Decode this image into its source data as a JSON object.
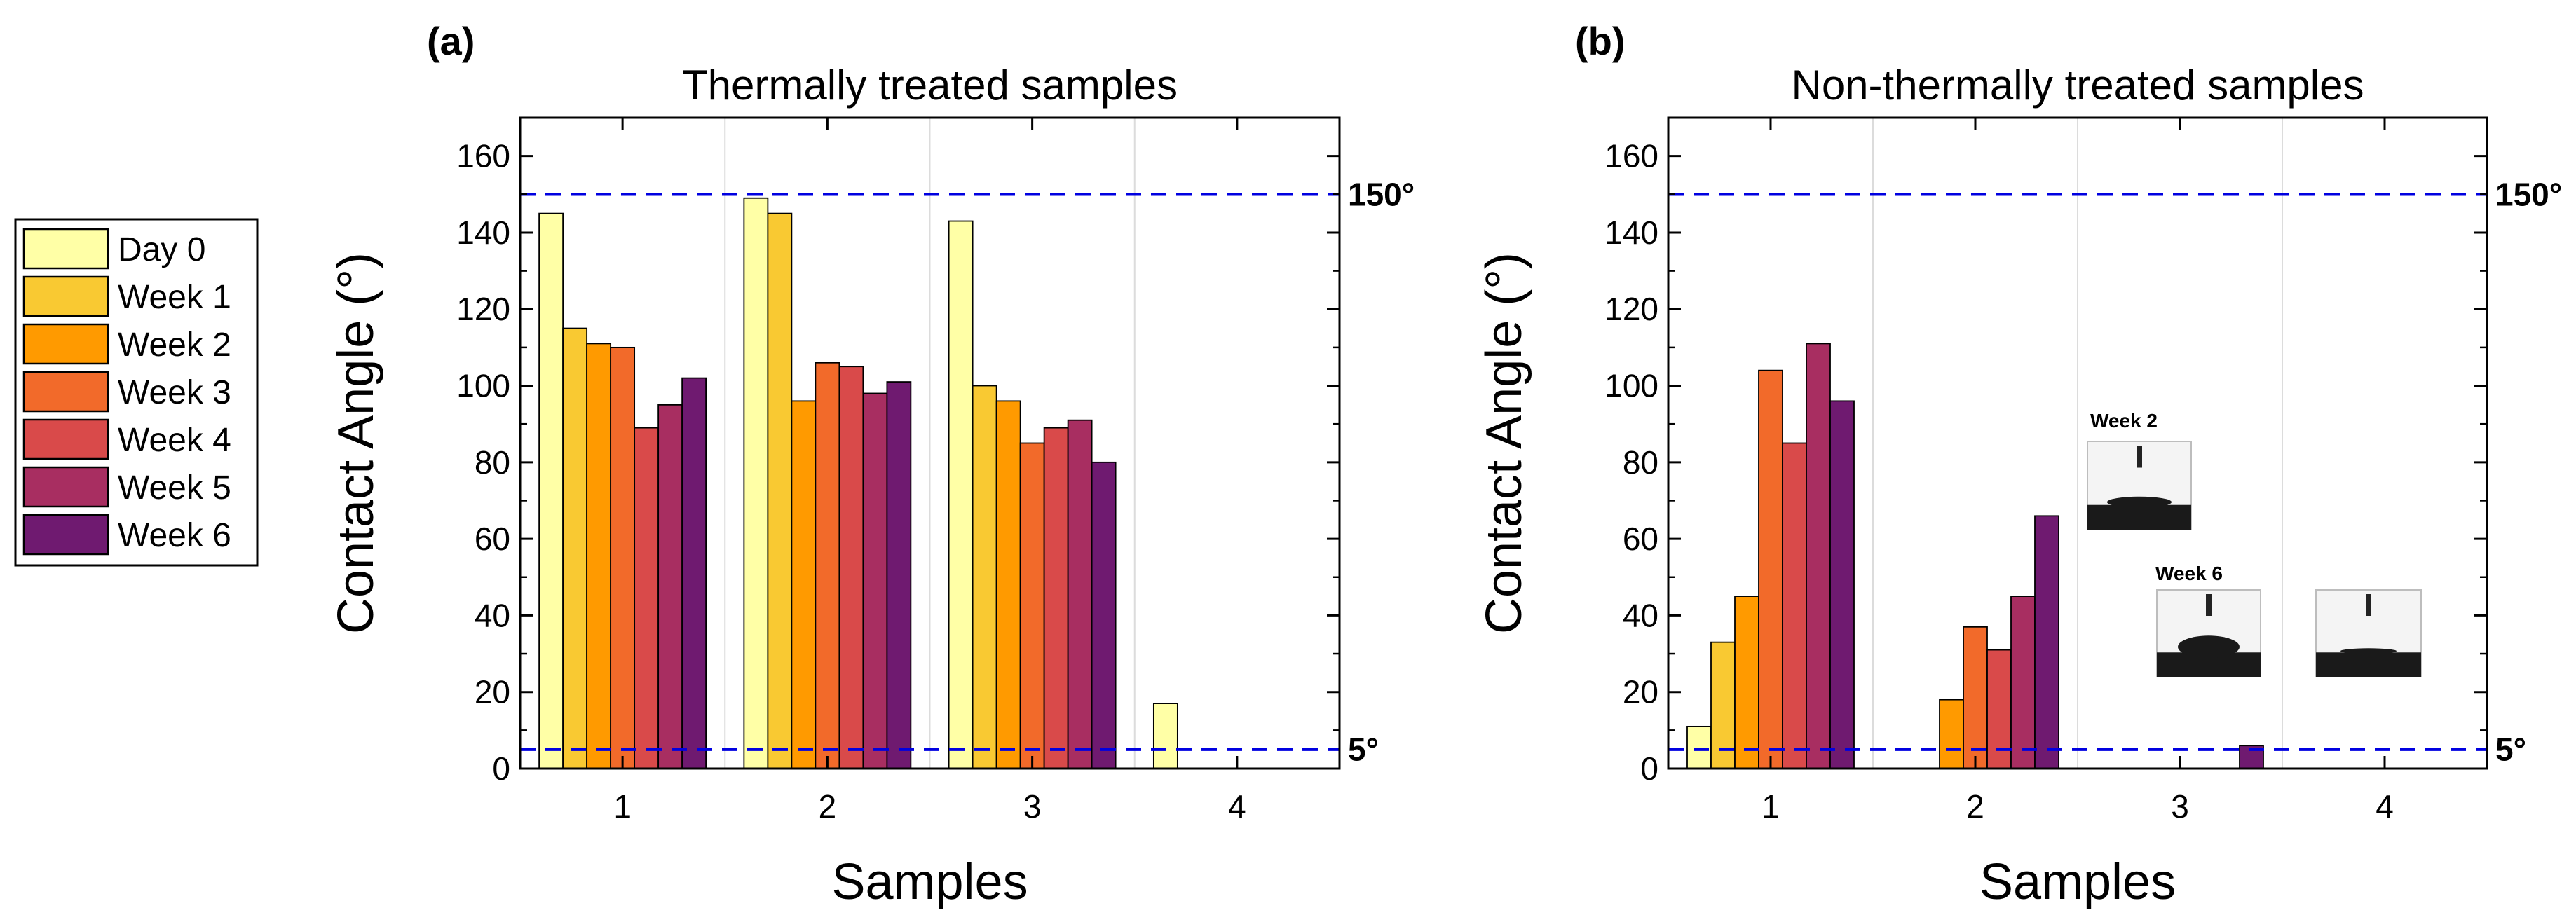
{
  "legend": {
    "entries": [
      {
        "label": "Day 0",
        "color": "#FFFFA6"
      },
      {
        "label": "Week 1",
        "color": "#F9C932"
      },
      {
        "label": "Week 2",
        "color": "#FF9A00"
      },
      {
        "label": "Week 3",
        "color": "#F26A2A"
      },
      {
        "label": "Week 4",
        "color": "#D94A4A"
      },
      {
        "label": "Week 5",
        "color": "#A82E61"
      },
      {
        "label": "Week 6",
        "color": "#6F1A70"
      }
    ]
  },
  "reference_lines": [
    {
      "value": 150,
      "label": "150°",
      "color": "#0000E0"
    },
    {
      "value": 5,
      "label": "5°",
      "color": "#0000E0"
    }
  ],
  "chart_data": [
    {
      "type": "bar",
      "panel": "(a)",
      "title": "Thermally treated samples",
      "xlabel": "Samples",
      "ylabel": "Contact Angle (°)",
      "categories": [
        "1",
        "2",
        "3",
        "4"
      ],
      "ylim": [
        0,
        170
      ],
      "yticks": [
        0,
        20,
        40,
        60,
        80,
        100,
        120,
        140,
        160
      ],
      "series": [
        {
          "name": "Day 0",
          "values": [
            145,
            149,
            143,
            17
          ]
        },
        {
          "name": "Week 1",
          "values": [
            115,
            145,
            100,
            0
          ]
        },
        {
          "name": "Week 2",
          "values": [
            111,
            96,
            96,
            0
          ]
        },
        {
          "name": "Week 3",
          "values": [
            110,
            106,
            85,
            0
          ]
        },
        {
          "name": "Week 4",
          "values": [
            89,
            105,
            89,
            0
          ]
        },
        {
          "name": "Week 5",
          "values": [
            95,
            98,
            91,
            0
          ]
        },
        {
          "name": "Week 6",
          "values": [
            102,
            101,
            80,
            0
          ]
        }
      ]
    },
    {
      "type": "bar",
      "panel": "(b)",
      "title": "Non-thermally treated samples",
      "xlabel": "Samples",
      "ylabel": "Contact Angle (°)",
      "categories": [
        "1",
        "2",
        "3",
        "4"
      ],
      "ylim": [
        0,
        170
      ],
      "yticks": [
        0,
        20,
        40,
        60,
        80,
        100,
        120,
        140,
        160
      ],
      "series": [
        {
          "name": "Day 0",
          "values": [
            11,
            0,
            0,
            0
          ]
        },
        {
          "name": "Week 1",
          "values": [
            33,
            0,
            0,
            0
          ]
        },
        {
          "name": "Week 2",
          "values": [
            45,
            18,
            0,
            0
          ]
        },
        {
          "name": "Week 3",
          "values": [
            104,
            37,
            0,
            0
          ]
        },
        {
          "name": "Week 4",
          "values": [
            85,
            31,
            0,
            0
          ]
        },
        {
          "name": "Week 5",
          "values": [
            111,
            45,
            0,
            0
          ]
        },
        {
          "name": "Week 6",
          "values": [
            96,
            66,
            6,
            0
          ]
        }
      ],
      "insets": [
        {
          "label": "Week 2"
        },
        {
          "label": "Week 6"
        },
        {
          "label": ""
        }
      ]
    }
  ]
}
